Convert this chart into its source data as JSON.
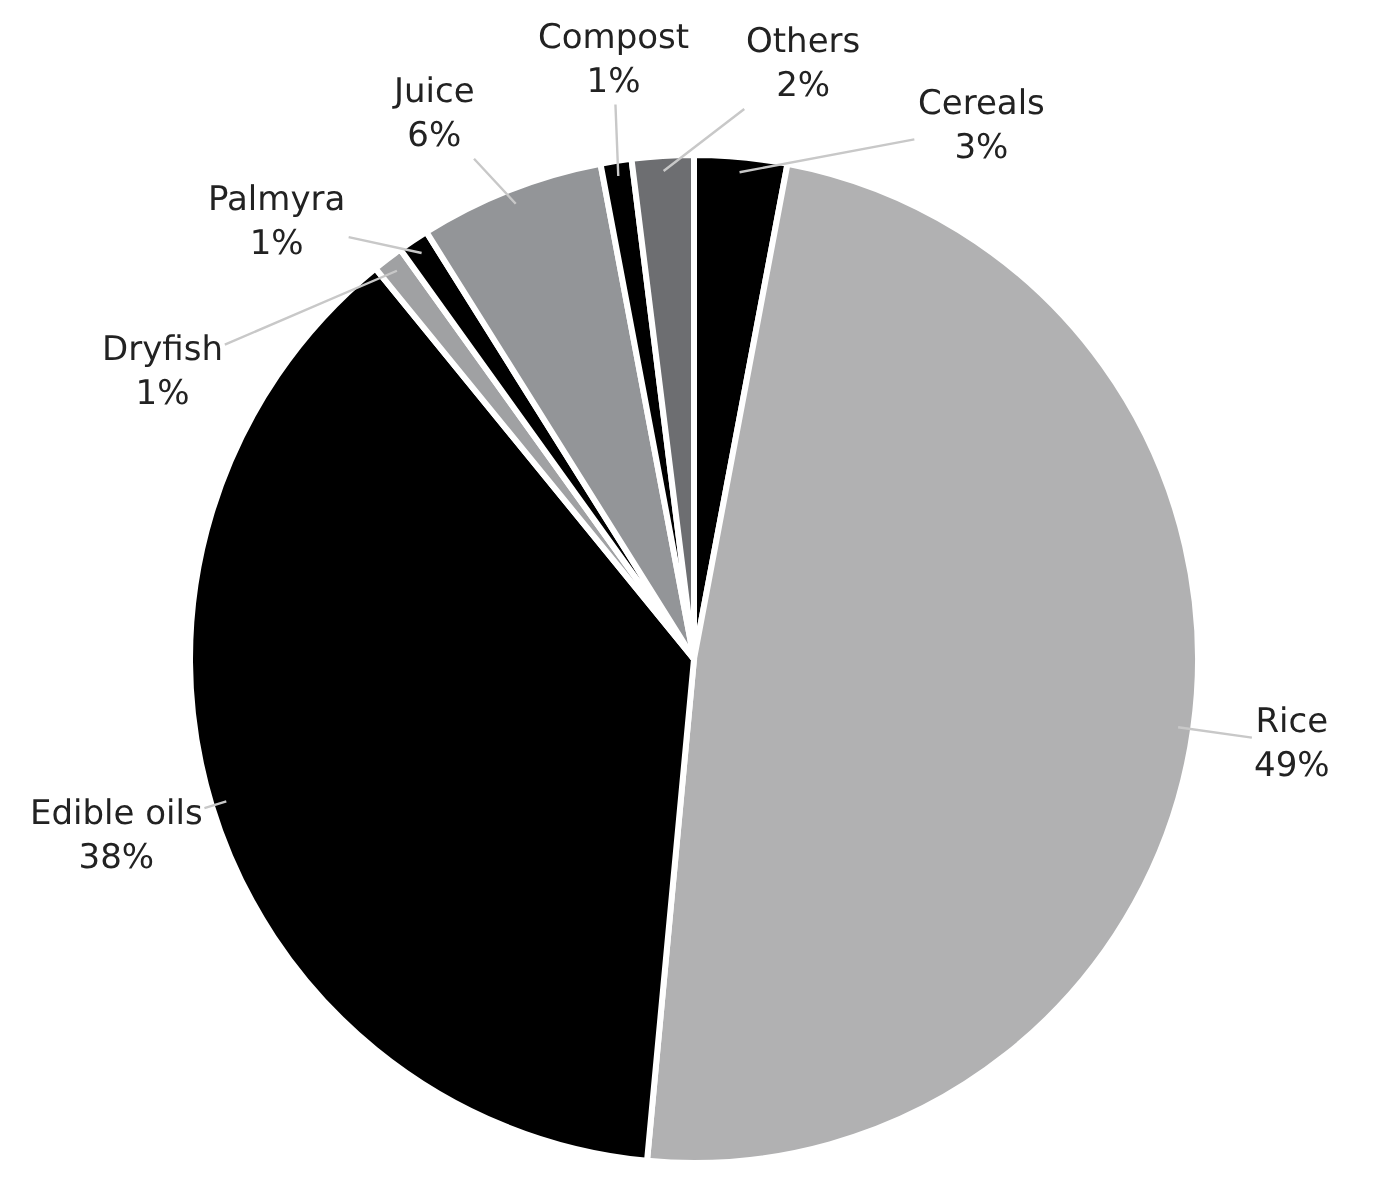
{
  "chart_data": {
    "type": "pie",
    "categories": [
      "Cereals",
      "Rice",
      "Edible oils",
      "Dryfish",
      "Palmyra",
      "Juice",
      "Compost",
      "Others"
    ],
    "values": [
      3,
      49,
      38,
      1,
      1,
      6,
      1,
      2
    ],
    "value_labels": [
      "3%",
      "49%",
      "38%",
      "1%",
      "1%",
      "6%",
      "1%",
      "2%"
    ],
    "colors": [
      "#000000",
      "#b1b1b2",
      "#000000",
      "#a0a1a3",
      "#000000",
      "#939598",
      "#000000",
      "#6d6e71"
    ],
    "legend": false
  }
}
